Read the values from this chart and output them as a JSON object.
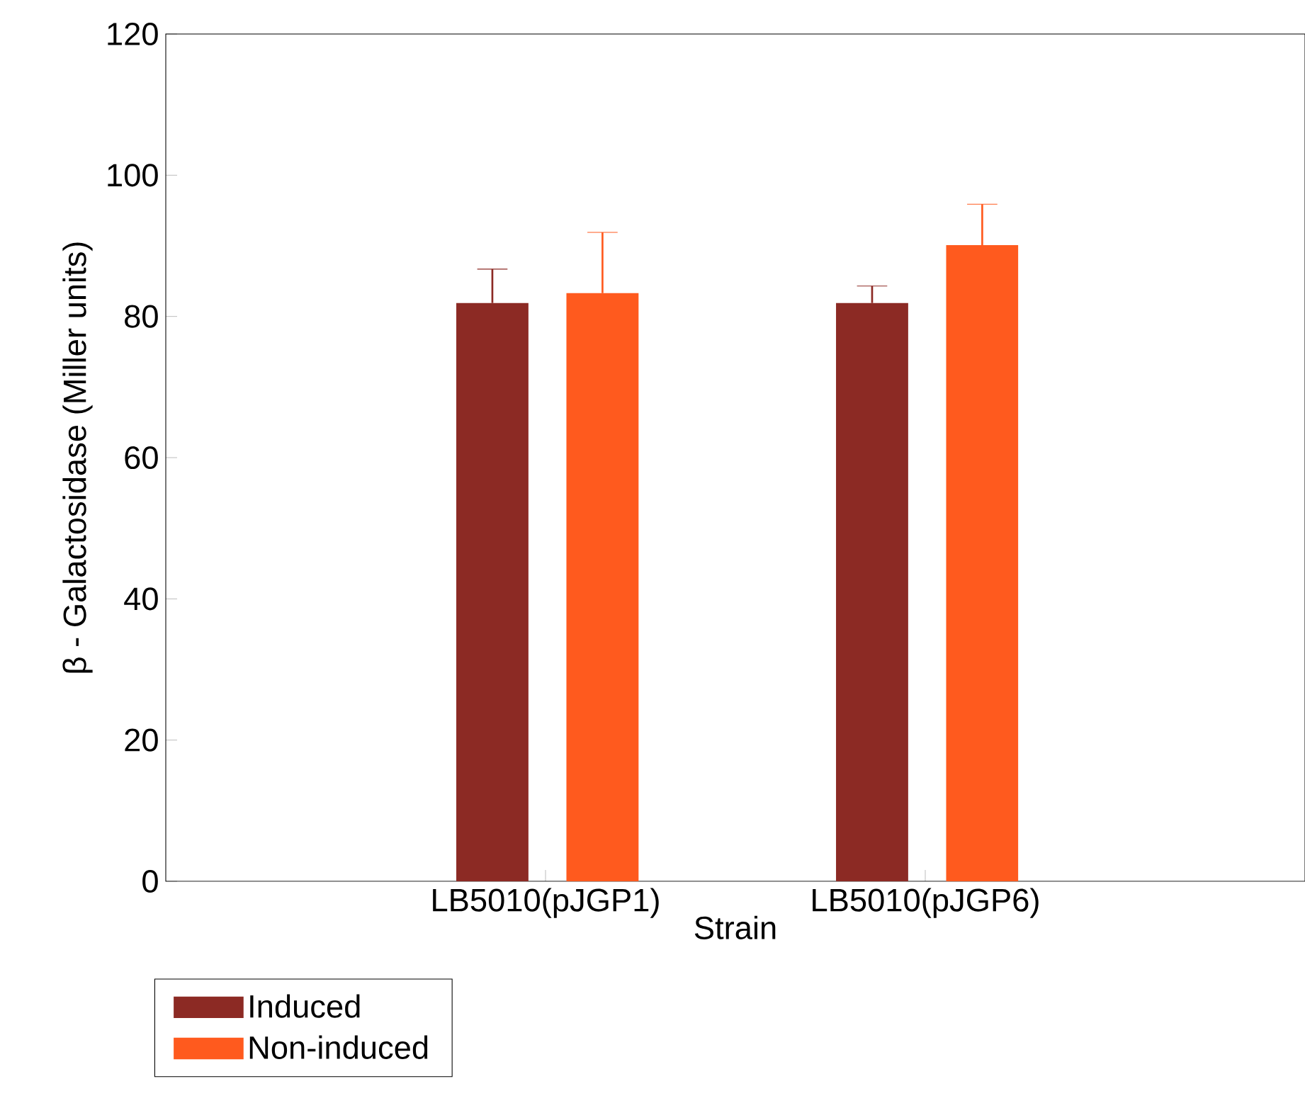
{
  "chart_data": {
    "type": "bar",
    "xlabel": "Strain",
    "ylabel": "β - Galactosidase (Miller units)",
    "categories": [
      "LB5010(pJGP1)",
      "LB5010(pJGP6)"
    ],
    "series": [
      {
        "name": "Induced",
        "color": "#8c2a24",
        "values": [
          81.9,
          81.9
        ],
        "errors": [
          [
            81.9,
            86.7
          ],
          [
            81.9,
            84.3
          ]
        ]
      },
      {
        "name": "Non-induced",
        "color": "#ff5a1e",
        "values": [
          83.3,
          90.1
        ],
        "errors": [
          [
            83.3,
            91.9
          ],
          [
            90.1,
            95.9
          ]
        ]
      }
    ],
    "ylim": [
      0,
      120
    ],
    "yticks": [
      0,
      20,
      40,
      60,
      80,
      100,
      120
    ],
    "legend": "bottom left",
    "grid": false
  }
}
